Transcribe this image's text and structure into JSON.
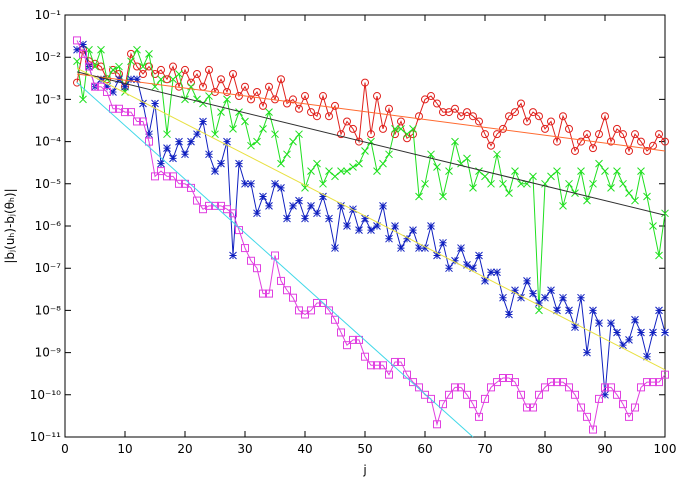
{
  "chart_data": {
    "type": "scatter",
    "x_label": "j",
    "y_label": "|bⱼ(uₕ)-bⱼ(θₕ)|",
    "log_y": true,
    "xlim": [
      0,
      100
    ],
    "xticks": [
      0,
      10,
      20,
      30,
      40,
      50,
      60,
      70,
      80,
      90,
      100
    ],
    "ylim": [
      1e-11,
      0.1
    ],
    "yticks": [
      {
        "value": 1e-11,
        "label": "10⁻¹¹"
      },
      {
        "value": 1e-10,
        "label": "10⁻¹⁰"
      },
      {
        "value": 1e-09,
        "label": "10⁻⁹"
      },
      {
        "value": 1e-08,
        "label": "10⁻⁸"
      },
      {
        "value": 1e-07,
        "label": "10⁻⁷"
      },
      {
        "value": 1e-06,
        "label": "10⁻⁶"
      },
      {
        "value": 1e-05,
        "label": "10⁻⁵"
      },
      {
        "value": 0.0001,
        "label": "10⁻⁴"
      },
      {
        "value": 0.001,
        "label": "10⁻³"
      },
      {
        "value": 0.01,
        "label": "10⁻²"
      },
      {
        "value": 0.1,
        "label": "10⁻¹"
      }
    ],
    "x": [
      2,
      3,
      4,
      5,
      6,
      7,
      8,
      9,
      10,
      11,
      12,
      13,
      14,
      15,
      16,
      17,
      18,
      19,
      20,
      21,
      22,
      23,
      24,
      25,
      26,
      27,
      28,
      29,
      30,
      31,
      32,
      33,
      34,
      35,
      36,
      37,
      38,
      39,
      40,
      41,
      42,
      43,
      44,
      45,
      46,
      47,
      48,
      49,
      50,
      51,
      52,
      53,
      54,
      55,
      56,
      57,
      58,
      59,
      60,
      61,
      62,
      63,
      64,
      65,
      66,
      67,
      68,
      69,
      70,
      71,
      72,
      73,
      74,
      75,
      76,
      77,
      78,
      79,
      80,
      81,
      82,
      83,
      84,
      85,
      86,
      87,
      88,
      89,
      90,
      91,
      92,
      93,
      94,
      95,
      96,
      97,
      98,
      99,
      100
    ],
    "series": [
      {
        "color": "#e0201c",
        "marker": "circle",
        "values": [
          0.0025,
          0.015,
          0.008,
          0.007,
          0.006,
          0.003,
          0.005,
          0.004,
          0.002,
          0.012,
          0.006,
          0.004,
          0.006,
          0.004,
          0.005,
          0.003,
          0.006,
          0.002,
          0.005,
          0.0025,
          0.004,
          0.002,
          0.005,
          0.0015,
          0.003,
          0.0015,
          0.004,
          0.0012,
          0.002,
          0.001,
          0.0015,
          0.0007,
          0.002,
          0.001,
          0.003,
          0.0008,
          0.001,
          0.0006,
          0.0012,
          0.0005,
          0.0004,
          0.0012,
          0.0004,
          0.0007,
          0.00015,
          0.0003,
          0.0002,
          0.0001,
          0.0025,
          0.00015,
          0.0012,
          0.0002,
          0.0006,
          0.00015,
          0.0003,
          0.00012,
          0.00015,
          0.0004,
          0.001,
          0.0012,
          0.0008,
          0.0005,
          0.0005,
          0.0006,
          0.0004,
          0.0005,
          0.0004,
          0.0003,
          0.00015,
          8e-05,
          0.00015,
          0.0002,
          0.0004,
          0.0005,
          0.0008,
          0.0003,
          0.0005,
          0.0004,
          0.0002,
          0.0003,
          0.0001,
          0.0004,
          0.0002,
          6e-05,
          0.0001,
          0.00015,
          7e-05,
          0.00015,
          0.0004,
          0.0001,
          0.0002,
          0.00015,
          6e-05,
          0.00015,
          0.0001,
          6e-05,
          8e-05,
          0.00015,
          0.0001
        ]
      },
      {
        "color": "#20e020",
        "marker": "cross",
        "values": [
          0.008,
          0.001,
          0.015,
          0.006,
          0.015,
          0.003,
          0.005,
          0.006,
          0.0015,
          0.008,
          0.015,
          0.006,
          0.012,
          0.002,
          0.003,
          0.00015,
          0.003,
          0.004,
          0.001,
          0.002,
          0.001,
          0.0008,
          0.0012,
          0.00015,
          0.0005,
          0.001,
          0.0002,
          0.0005,
          0.0003,
          8e-05,
          0.0001,
          0.0002,
          0.0005,
          0.00015,
          3e-05,
          5e-05,
          0.0001,
          0.00015,
          8e-06,
          2e-05,
          3e-05,
          1e-05,
          2e-05,
          1.5e-05,
          2e-05,
          2e-05,
          2.5e-05,
          3e-05,
          6e-05,
          0.0001,
          2e-05,
          3e-05,
          5e-05,
          0.0002,
          0.0002,
          0.00015,
          0.0002,
          5e-06,
          1e-05,
          5e-05,
          2.5e-05,
          5e-06,
          2e-05,
          0.0001,
          3e-05,
          4e-05,
          8e-06,
          2e-05,
          1.5e-05,
          1e-05,
          5e-05,
          1e-05,
          6e-06,
          2e-05,
          1e-05,
          1e-05,
          1.5e-05,
          1e-08,
          1e-05,
          1.5e-05,
          2e-05,
          3e-06,
          1e-05,
          6e-06,
          2e-05,
          4e-06,
          1e-05,
          3e-05,
          2e-05,
          8e-06,
          2e-05,
          1e-05,
          6e-06,
          4e-06,
          2e-05,
          5e-06,
          1e-06,
          2e-07,
          2e-06
        ]
      },
      {
        "color": "#1020c0",
        "marker": "star",
        "values": [
          0.015,
          0.02,
          0.006,
          0.002,
          0.003,
          0.002,
          0.0015,
          0.003,
          0.002,
          0.003,
          0.003,
          0.0008,
          0.00015,
          0.0008,
          3e-05,
          7e-05,
          4e-05,
          0.0001,
          5e-05,
          0.0001,
          0.00015,
          0.0003,
          5e-05,
          2e-05,
          3e-05,
          0.0001,
          2e-07,
          3e-05,
          1e-05,
          1e-05,
          2e-06,
          5e-06,
          3e-06,
          1e-05,
          8e-06,
          1.5e-06,
          3e-06,
          4e-06,
          1.5e-06,
          3e-06,
          2e-06,
          5e-06,
          1.5e-06,
          3e-07,
          3e-06,
          1e-06,
          2.5e-06,
          8e-07,
          1.5e-06,
          8e-07,
          1e-06,
          3e-06,
          5e-07,
          1e-06,
          3e-07,
          5e-07,
          8e-07,
          3e-07,
          3e-07,
          1e-06,
          2e-07,
          4e-07,
          1e-07,
          1.5e-07,
          3e-07,
          1.2e-07,
          1e-07,
          2e-07,
          5e-08,
          8e-08,
          8e-08,
          2e-08,
          8e-09,
          3e-08,
          2e-08,
          5e-08,
          2.5e-08,
          1.5e-08,
          2e-08,
          3e-08,
          1e-08,
          2e-08,
          1e-08,
          4e-09,
          2e-08,
          1e-09,
          1e-08,
          5e-09,
          1e-10,
          5e-09,
          3e-09,
          1.5e-09,
          2e-09,
          6e-09,
          3e-09,
          8e-10,
          3e-09,
          1e-08,
          3e-09
        ]
      },
      {
        "color": "#e040e0",
        "marker": "square",
        "values": [
          0.025,
          0.012,
          0.006,
          0.002,
          0.002,
          0.0015,
          0.0006,
          0.0006,
          0.0005,
          0.0005,
          0.0003,
          0.0003,
          0.0001,
          1.5e-05,
          2e-05,
          1.5e-05,
          1.5e-05,
          1e-05,
          1e-05,
          8e-06,
          4e-06,
          2.5e-06,
          3e-06,
          3e-06,
          3e-06,
          2.5e-06,
          2e-06,
          8e-07,
          3e-07,
          1.5e-07,
          1e-07,
          2.5e-08,
          2.5e-08,
          2e-07,
          5e-08,
          3e-08,
          2e-08,
          1e-08,
          8e-09,
          1e-08,
          1.5e-08,
          1.5e-08,
          1e-08,
          6e-09,
          3e-09,
          1.5e-09,
          2e-09,
          2e-09,
          8e-10,
          5e-10,
          5e-10,
          5e-10,
          3e-10,
          6e-10,
          6e-10,
          3e-10,
          2e-10,
          1.5e-10,
          1e-10,
          8e-11,
          2e-11,
          6e-11,
          1e-10,
          1.5e-10,
          1.5e-10,
          1e-10,
          6e-11,
          3e-11,
          8e-11,
          1.5e-10,
          2e-10,
          2.5e-10,
          2.5e-10,
          2e-10,
          1e-10,
          5e-11,
          5e-11,
          1e-10,
          1.5e-10,
          2e-10,
          2e-10,
          2e-10,
          1.5e-10,
          1e-10,
          5e-11,
          3e-11,
          1.5e-11,
          8e-11,
          1.5e-10,
          1.5e-10,
          1e-10,
          6e-11,
          3e-11,
          5e-11,
          1.5e-10,
          2e-10,
          2e-10,
          2e-10,
          3e-10
        ]
      },
      {
        "color": "#ff6a30",
        "marker": "none",
        "x": [
          2,
          100
        ],
        "values": [
          0.004,
          6e-05
        ]
      },
      {
        "color": "#303030",
        "marker": "none",
        "x": [
          2,
          100
        ],
        "values": [
          0.0045,
          1.8e-06
        ]
      },
      {
        "color": "#e8e040",
        "marker": "none",
        "x": [
          2,
          100
        ],
        "values": [
          0.0055,
          3.9e-10
        ]
      },
      {
        "color": "#40d8e8",
        "marker": "none",
        "x": [
          2,
          68
        ],
        "values": [
          0.0025,
          1e-11
        ]
      }
    ]
  }
}
